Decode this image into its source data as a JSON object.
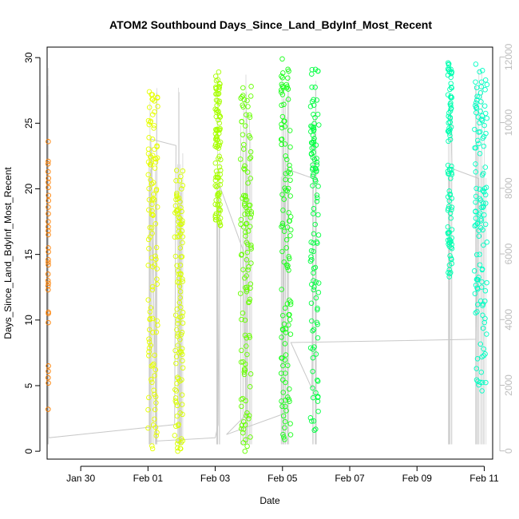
{
  "chart_data": {
    "type": "scatter",
    "title": "ATOM2 Southbound Days_Since_Land_BdyInf_Most_Recent",
    "xlabel": "Date",
    "ylabel": "Days_Since_Land_BdyInf_Most_Recent",
    "x_ticks": [
      "Jan 30",
      "Feb 01",
      "Feb 03",
      "Feb 05",
      "Feb 07",
      "Feb 09",
      "Feb 11"
    ],
    "y_ticks": [
      0,
      5,
      10,
      15,
      20,
      25,
      30
    ],
    "y_right_ticks": [
      0,
      2000,
      4000,
      6000,
      8000,
      10000,
      12000
    ],
    "xlim": [
      "Jan 29 00:00",
      "Feb 11 06:00"
    ],
    "ylim": [
      -0.6,
      30.8
    ],
    "y_right_lim": [
      -250,
      12300
    ],
    "marker": "open-circle",
    "grid": false,
    "clusters": [
      {
        "start": "Jan 29 00:40",
        "end": "Jan 29 01:00",
        "color": "#ff8000",
        "y_values": [
          3.2,
          5.2,
          5.6,
          6.1,
          6.5,
          9.8,
          10.5,
          10.6,
          12.3,
          12.6,
          12.8,
          13.0,
          13.5,
          14.2,
          14.4,
          14.6,
          15.2,
          15.5,
          16.5,
          16.8,
          17.1,
          17.5,
          18.1,
          18.6,
          19.1,
          19.5,
          20.1,
          20.5,
          20.8,
          21.3,
          21.9,
          22.1,
          23.6
        ]
      },
      {
        "start": "Feb 01 00:00",
        "end": "Feb 01 07:00",
        "color": "#e6ff00",
        "y_min": 0.2,
        "y_max": 27.4
      },
      {
        "start": "Feb 01 19:00",
        "end": "Feb 02 01:00",
        "color": "#d9ff00",
        "y_min": 0.0,
        "y_max": 21.4
      },
      {
        "start": "Feb 03 00:00",
        "end": "Feb 03 04:00",
        "color": "#a6ff00",
        "y_min": 17.2,
        "y_max": 28.9
      },
      {
        "start": "Feb 03 18:00",
        "end": "Feb 04 02:00",
        "color": "#66ff00",
        "y_min": 0.0,
        "y_max": 27.8
      },
      {
        "start": "Feb 04 23:00",
        "end": "Feb 05 06:00",
        "color": "#1aff1a",
        "y_min": 0.9,
        "y_max": 29.9
      },
      {
        "start": "Feb 05 20:00",
        "end": "Feb 06 02:00",
        "color": "#00ff40",
        "y_min": 1.6,
        "y_max": 29.1
      },
      {
        "start": "Feb 09 22:00",
        "end": "Feb 10 01:00",
        "color": "#00ffb0",
        "y_min": 13.3,
        "y_max": 29.6
      },
      {
        "start": "Feb 10 17:00",
        "end": "Feb 11 02:00",
        "color": "#00ffc4",
        "y_min": 4.6,
        "y_max": 29.5
      }
    ],
    "secondary_series": {
      "axis": "right",
      "color": "#c8c8c8",
      "type": "line",
      "points": [
        [
          "Jan 29 00:40",
          200
        ],
        [
          "Jan 29 00:50",
          9400
        ],
        [
          "Jan 29 01:10",
          400
        ],
        [
          "Feb 01 19:00",
          800
        ],
        [
          "Feb 01 20:00",
          9300
        ],
        [
          "Feb 01 02:00",
          9500
        ],
        [
          "Feb 01 06:00",
          300
        ],
        [
          "Feb 03 00:00",
          400
        ],
        [
          "Feb 03 02:00",
          800
        ],
        [
          "Feb 03 03:00",
          8100
        ],
        [
          "Feb 03 20:00",
          6100
        ],
        [
          "Feb 03 22:00",
          1100
        ],
        [
          "Feb 03 08:00",
          500
        ],
        [
          "Feb 04 23:00",
          1100
        ],
        [
          "Feb 05 00:00",
          3300
        ],
        [
          "Feb 05 02:00",
          8600
        ],
        [
          "Feb 05 22:00",
          8300
        ],
        [
          "Feb 05 21:00",
          1900
        ],
        [
          "Feb 05 06:00",
          3300
        ],
        [
          "Feb 10 18:00",
          3400
        ],
        [
          "Feb 10 20:00",
          8300
        ],
        [
          "Feb 10 01:00",
          8600
        ],
        [
          "Feb 10 00:00",
          10300
        ]
      ]
    }
  }
}
